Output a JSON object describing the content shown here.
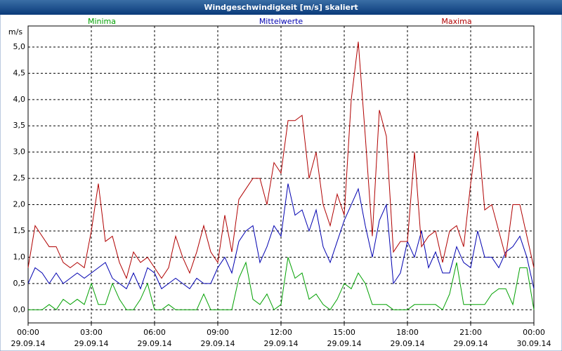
{
  "chart_data": {
    "type": "line",
    "title": "Windgeschwindigkeit [m/s] skaliert",
    "y_unit": "m/s",
    "xlim": [
      0,
      1440
    ],
    "xticks": [
      {
        "value": 0,
        "label": "00:00"
      },
      {
        "value": 180,
        "label": "03:00"
      },
      {
        "value": 360,
        "label": "06:00"
      },
      {
        "value": 540,
        "label": "09:00"
      },
      {
        "value": 720,
        "label": "12:00"
      },
      {
        "value": 900,
        "label": "15:00"
      },
      {
        "value": 1080,
        "label": "18:00"
      },
      {
        "value": 1260,
        "label": "21:00"
      },
      {
        "value": 1440,
        "label": "00:00"
      }
    ],
    "xtick_dates": [
      "29.09.14",
      "29.09.14",
      "29.09.14",
      "29.09.14",
      "29.09.14",
      "29.09.14",
      "29.09.14",
      "29.09.14",
      "30.09.14"
    ],
    "ylim": [
      -0.25,
      5.4
    ],
    "yticks": [
      {
        "value": 0,
        "label": "0,0"
      },
      {
        "value": 0.5,
        "label": "0,5"
      },
      {
        "value": 1,
        "label": "1,0"
      },
      {
        "value": 1.5,
        "label": "1,5"
      },
      {
        "value": 2,
        "label": "2,0"
      },
      {
        "value": 2.5,
        "label": "2,5"
      },
      {
        "value": 3,
        "label": "3,0"
      },
      {
        "value": 3.5,
        "label": "3,5"
      },
      {
        "value": 4,
        "label": "4,0"
      },
      {
        "value": 4.5,
        "label": "4,5"
      },
      {
        "value": 5,
        "label": "5,0"
      }
    ],
    "grid": true,
    "x": [
      0,
      20,
      40,
      60,
      80,
      100,
      120,
      140,
      160,
      180,
      200,
      220,
      240,
      260,
      280,
      300,
      320,
      340,
      360,
      380,
      400,
      420,
      440,
      460,
      480,
      500,
      520,
      540,
      560,
      580,
      600,
      620,
      640,
      660,
      680,
      700,
      720,
      740,
      760,
      780,
      800,
      820,
      840,
      860,
      880,
      900,
      920,
      940,
      960,
      980,
      1000,
      1020,
      1040,
      1060,
      1080,
      1100,
      1120,
      1140,
      1160,
      1180,
      1200,
      1220,
      1240,
      1260,
      1280,
      1300,
      1320,
      1340,
      1360,
      1380,
      1400,
      1420,
      1440
    ],
    "series": [
      {
        "name": "Minima",
        "color": "#00a000",
        "values": [
          0.0,
          0.0,
          0.0,
          0.1,
          0.0,
          0.2,
          0.1,
          0.2,
          0.1,
          0.5,
          0.1,
          0.1,
          0.5,
          0.2,
          0.0,
          0.0,
          0.2,
          0.5,
          0.0,
          0.0,
          0.1,
          0.0,
          0.0,
          0.0,
          0.0,
          0.3,
          0.0,
          0.0,
          0.0,
          0.0,
          0.6,
          0.9,
          0.2,
          0.1,
          0.3,
          0.0,
          0.1,
          1.0,
          0.6,
          0.7,
          0.2,
          0.3,
          0.1,
          0.0,
          0.2,
          0.5,
          0.4,
          0.7,
          0.5,
          0.1,
          0.1,
          0.1,
          0.0,
          0.0,
          0.0,
          0.1,
          0.1,
          0.1,
          0.1,
          0.0,
          0.3,
          0.9,
          0.1,
          0.1,
          0.1,
          0.1,
          0.3,
          0.4,
          0.4,
          0.1,
          0.8,
          0.8,
          0.0
        ]
      },
      {
        "name": "Mittelwerte",
        "color": "#0000b0",
        "values": [
          0.5,
          0.8,
          0.7,
          0.5,
          0.7,
          0.5,
          0.6,
          0.7,
          0.6,
          0.7,
          0.8,
          0.9,
          0.6,
          0.5,
          0.4,
          0.7,
          0.4,
          0.8,
          0.7,
          0.4,
          0.5,
          0.6,
          0.5,
          0.4,
          0.6,
          0.5,
          0.5,
          0.8,
          1.0,
          0.7,
          1.3,
          1.5,
          1.6,
          0.9,
          1.2,
          1.6,
          1.4,
          2.4,
          1.8,
          1.9,
          1.5,
          1.9,
          1.2,
          0.9,
          1.3,
          1.7,
          2.0,
          2.3,
          1.6,
          1.0,
          1.7,
          2.0,
          0.5,
          0.7,
          1.3,
          1.0,
          1.5,
          0.8,
          1.1,
          0.7,
          0.7,
          1.2,
          0.9,
          0.8,
          1.5,
          1.0,
          1.0,
          0.8,
          1.1,
          1.2,
          1.4,
          1.0,
          0.4
        ]
      },
      {
        "name": "Maxima",
        "color": "#b00000",
        "values": [
          0.8,
          1.6,
          1.4,
          1.2,
          1.2,
          0.9,
          0.8,
          0.9,
          0.8,
          1.5,
          2.4,
          1.3,
          1.4,
          0.9,
          0.6,
          1.1,
          0.9,
          1.0,
          0.8,
          0.6,
          0.8,
          1.4,
          1.0,
          0.7,
          1.1,
          1.6,
          1.1,
          0.9,
          1.8,
          1.1,
          2.1,
          2.3,
          2.5,
          2.5,
          2.0,
          2.8,
          2.6,
          3.6,
          3.6,
          3.7,
          2.5,
          3.0,
          2.0,
          1.6,
          2.2,
          1.8,
          4.0,
          5.1,
          3.3,
          1.4,
          3.8,
          3.3,
          1.1,
          1.3,
          1.3,
          3.0,
          1.2,
          1.4,
          1.5,
          0.9,
          1.5,
          1.6,
          1.2,
          2.4,
          3.4,
          1.9,
          2.0,
          1.5,
          1.0,
          2.0,
          2.0,
          1.4,
          0.8
        ]
      }
    ]
  }
}
